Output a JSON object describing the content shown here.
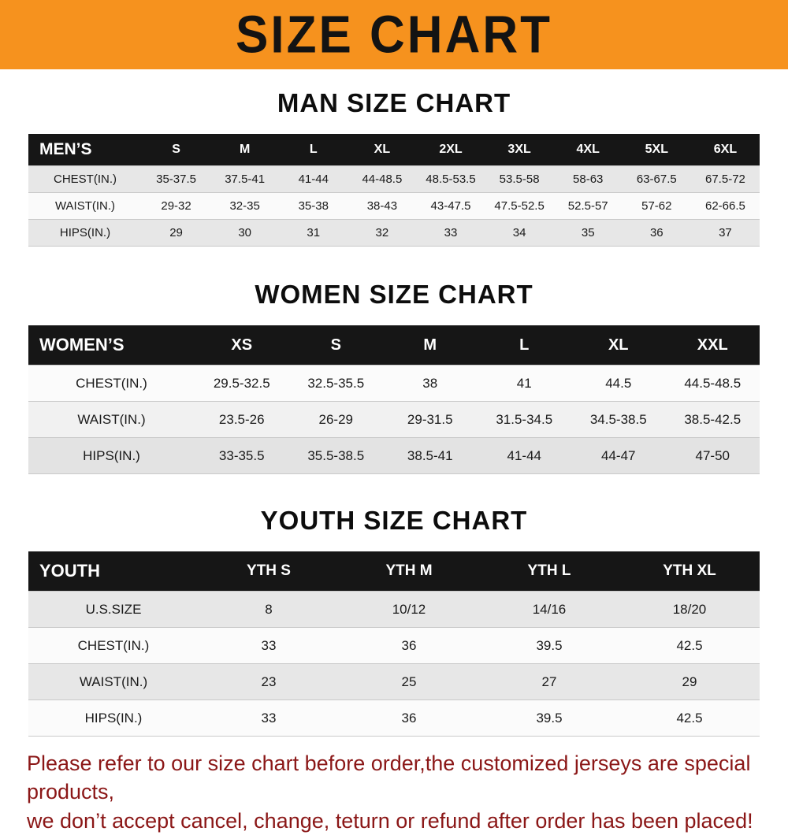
{
  "banner": {
    "title": "SIZE CHART",
    "bg_color": "#f6921e",
    "text_color": "#131313"
  },
  "sections": [
    {
      "heading": "MAN SIZE CHART"
    },
    {
      "heading": "WOMEN SIZE CHART"
    },
    {
      "heading": "YOUTH SIZE CHART"
    }
  ],
  "chart_data": [
    {
      "type": "table",
      "title": "MAN SIZE CHART",
      "label": "MEN’S",
      "columns": [
        "S",
        "M",
        "L",
        "XL",
        "2XL",
        "3XL",
        "4XL",
        "5XL",
        "6XL"
      ],
      "rows": [
        {
          "label": "CHEST(IN.)",
          "values": [
            "35-37.5",
            "37.5-41",
            "41-44",
            "44-48.5",
            "48.5-53.5",
            "53.5-58",
            "58-63",
            "63-67.5",
            "67.5-72"
          ]
        },
        {
          "label": "WAIST(IN.)",
          "values": [
            "29-32",
            "32-35",
            "35-38",
            "38-43",
            "43-47.5",
            "47.5-52.5",
            "52.5-57",
            "57-62",
            "62-66.5"
          ]
        },
        {
          "label": "HIPS(IN.)",
          "values": [
            "29",
            "30",
            "31",
            "32",
            "33",
            "34",
            "35",
            "36",
            "37"
          ]
        }
      ]
    },
    {
      "type": "table",
      "title": "WOMEN SIZE CHART",
      "label": "WOMEN’S",
      "columns": [
        "XS",
        "S",
        "M",
        "L",
        "XL",
        "XXL"
      ],
      "rows": [
        {
          "label": "CHEST(IN.)",
          "values": [
            "29.5-32.5",
            "32.5-35.5",
            "38",
            "41",
            "44.5",
            "44.5-48.5"
          ]
        },
        {
          "label": "WAIST(IN.)",
          "values": [
            "23.5-26",
            "26-29",
            "29-31.5",
            "31.5-34.5",
            "34.5-38.5",
            "38.5-42.5"
          ]
        },
        {
          "label": "HIPS(IN.)",
          "values": [
            "33-35.5",
            "35.5-38.5",
            "38.5-41",
            "41-44",
            "44-47",
            "47-50"
          ]
        }
      ]
    },
    {
      "type": "table",
      "title": "YOUTH SIZE CHART",
      "label": "YOUTH",
      "columns": [
        "YTH S",
        "YTH M",
        "YTH L",
        "YTH XL"
      ],
      "rows": [
        {
          "label": "U.S.SIZE",
          "values": [
            "8",
            "10/12",
            "14/16",
            "18/20"
          ]
        },
        {
          "label": "CHEST(IN.)",
          "values": [
            "33",
            "36",
            "39.5",
            "42.5"
          ]
        },
        {
          "label": "WAIST(IN.)",
          "values": [
            "23",
            "25",
            "27",
            "29"
          ]
        },
        {
          "label": "HIPS(IN.)",
          "values": [
            "33",
            "36",
            "39.5",
            "42.5"
          ]
        }
      ]
    }
  ],
  "footer": {
    "line1": "Please refer to our size chart before order,the customized jerseys are special products,",
    "line2": "we don’t accept cancel, change, teturn or refund after order has been placed!",
    "text_color": "#8b1717"
  }
}
